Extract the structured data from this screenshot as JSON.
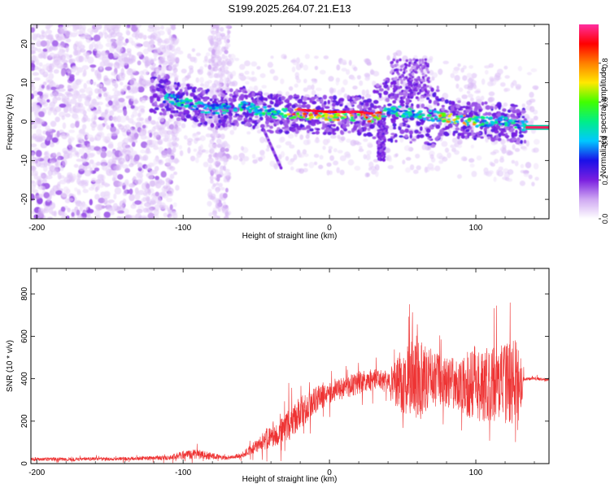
{
  "title": "S199.2025.264.07.21.E13",
  "chart_data": [
    {
      "type": "heatmap",
      "xlabel": "Height of straight line (km)",
      "ylabel": "Frequency (Hz)",
      "xlim": [
        -204,
        150
      ],
      "ylim": [
        -25,
        25
      ],
      "xticks": [
        -200,
        -100,
        0,
        100
      ],
      "xtick_labels": [
        "-200",
        "-100",
        "0",
        "100"
      ],
      "yticks": [
        -20,
        -10,
        0,
        10,
        20
      ],
      "ytick_labels": [
        "-20",
        "-10",
        "0",
        "10",
        "20"
      ],
      "colorbar": {
        "label": "Normalized spectral amplitude",
        "range": [
          0,
          1
        ],
        "ticks": [
          0.0,
          0.2,
          0.4,
          0.6,
          0.8
        ],
        "tick_labels": [
          "0.0",
          "0.2",
          "0.4",
          "0.6",
          "0.8"
        ],
        "colors": [
          "#ffffff",
          "#cfa8f2",
          "#7a1fe0",
          "#1a10e8",
          "#00c8ff",
          "#00ee88",
          "#40ff00",
          "#ffe800",
          "#ff8000",
          "#ff0000",
          "#ff2ea0"
        ]
      },
      "ridge": {
        "x": [
          -120,
          -100,
          -80,
          -60,
          -40,
          -20,
          0,
          20,
          30,
          40,
          60,
          80,
          100,
          120,
          132,
          150
        ],
        "y": [
          7,
          5,
          3,
          4,
          2,
          2,
          1.5,
          1.5,
          1,
          3,
          2,
          1,
          0,
          0,
          -1,
          -1.5
        ]
      }
    },
    {
      "type": "line",
      "xlabel": "Height of straight line (km)",
      "ylabel": "SNR (10 * v/v)",
      "xlim": [
        -204,
        150
      ],
      "ylim": [
        0,
        920
      ],
      "xticks": [
        -200,
        -100,
        0,
        100
      ],
      "xtick_labels": [
        "-200",
        "-100",
        "0",
        "100"
      ],
      "yticks": [
        0,
        200,
        400,
        600,
        800
      ],
      "ytick_labels": [
        "0",
        "200",
        "400",
        "600",
        "800"
      ],
      "color": "#ee3333",
      "envelope": {
        "x": [
          -204,
          -150,
          -110,
          -100,
          -90,
          -80,
          -70,
          -60,
          -50,
          -40,
          -30,
          -20,
          -10,
          0,
          10,
          20,
          30,
          40,
          50,
          60,
          70,
          80,
          90,
          100,
          110,
          120,
          130,
          133,
          140,
          150
        ],
        "base": [
          20,
          22,
          28,
          40,
          45,
          35,
          25,
          40,
          80,
          130,
          170,
          230,
          300,
          330,
          360,
          380,
          400,
          390,
          380,
          400,
          400,
          380,
          370,
          380,
          370,
          380,
          390,
          400,
          400,
          395
        ],
        "amp": [
          10,
          10,
          14,
          25,
          30,
          20,
          10,
          15,
          40,
          70,
          90,
          90,
          80,
          60,
          60,
          70,
          60,
          60,
          200,
          230,
          180,
          150,
          160,
          230,
          210,
          240,
          260,
          10,
          10,
          10
        ]
      }
    }
  ]
}
